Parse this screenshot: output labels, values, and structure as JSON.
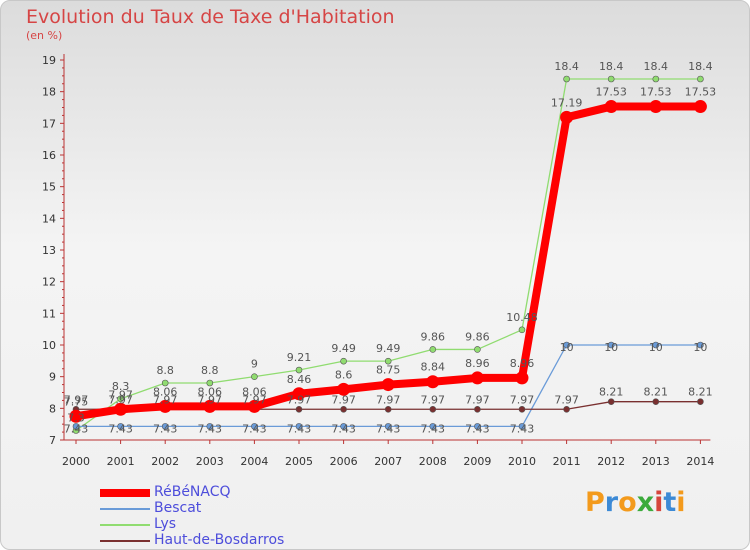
{
  "title": "Evolution du Taux de Taxe d'Habitation",
  "subtitle": "(en %)",
  "logo": {
    "letters": [
      "P",
      "r",
      "o",
      "x",
      "i",
      "t",
      "i"
    ],
    "colors": [
      "#f39a1c",
      "#3c8ad6",
      "#f39a1c",
      "#3cab3c",
      "#d6453c",
      "#3c8ad6",
      "#f39a1c"
    ]
  },
  "chart_data": {
    "type": "line",
    "title": "Evolution du Taux de Taxe d'Habitation",
    "subtitle": "(en %)",
    "x": [
      "2000",
      "2001",
      "2002",
      "2003",
      "2004",
      "2005",
      "2006",
      "2007",
      "2008",
      "2009",
      "2010",
      "2011",
      "2012",
      "2013",
      "2014"
    ],
    "ylim": [
      7,
      19
    ],
    "yticks": [
      "7",
      "8",
      "9",
      "10",
      "11",
      "12",
      "13",
      "14",
      "15",
      "16",
      "17",
      "18",
      "19"
    ],
    "grid": false,
    "legend_position": "bottom-left",
    "series": [
      {
        "name": "RéBéNACQ",
        "color": "#ff0000",
        "values": [
          7.75,
          7.97,
          8.06,
          8.06,
          8.06,
          8.46,
          8.6,
          8.75,
          8.84,
          8.96,
          8.96,
          17.19,
          17.53,
          17.53,
          17.53
        ],
        "labels": [
          "7.75",
          "7.97",
          "8.06",
          "8.06",
          "8.06",
          "8.46",
          "8.6",
          "8.75",
          "8.84",
          "8.96",
          "8.96",
          "17.19",
          "17.53",
          "17.53",
          "17.53"
        ]
      },
      {
        "name": "Bescat",
        "color": "#6a9bd8",
        "values": [
          7.43,
          7.43,
          7.43,
          7.43,
          7.43,
          7.43,
          7.43,
          7.43,
          7.43,
          7.43,
          7.43,
          10,
          10,
          10,
          10
        ],
        "labels": [
          "7.43",
          "7.43",
          "7.43",
          "7.43",
          "7.43",
          "7.43",
          "7.43",
          "7.43",
          "7.43",
          "7.43",
          "7.43",
          "10",
          "10",
          "10",
          "10"
        ]
      },
      {
        "name": "Lys",
        "color": "#90dc70",
        "values": [
          7.3,
          8.3,
          8.8,
          8.8,
          9,
          9.21,
          9.49,
          9.49,
          9.86,
          9.86,
          10.48,
          18.4,
          18.4,
          18.4,
          18.4
        ],
        "labels": [
          "7.3",
          "8.3",
          "8.8",
          "8.8",
          "9",
          "9.21",
          "9.49",
          "9.49",
          "9.86",
          "9.86",
          "10.48",
          "18.4",
          "18.4",
          "18.4",
          "18.4"
        ]
      },
      {
        "name": "Haut-de-Bosdarros",
        "color": "#7a3030",
        "values": [
          7.97,
          7.97,
          7.97,
          7.97,
          7.97,
          7.97,
          7.97,
          7.97,
          7.97,
          7.97,
          7.97,
          7.97,
          8.21,
          8.21,
          8.21
        ],
        "labels": [
          "7.97",
          "7.97",
          "7.97",
          "7.97",
          "7.97",
          "7.97",
          "7.97",
          "7.97",
          "7.97",
          "7.97",
          "7.97",
          "7.97",
          "8.21",
          "8.21",
          "8.21"
        ]
      }
    ]
  }
}
